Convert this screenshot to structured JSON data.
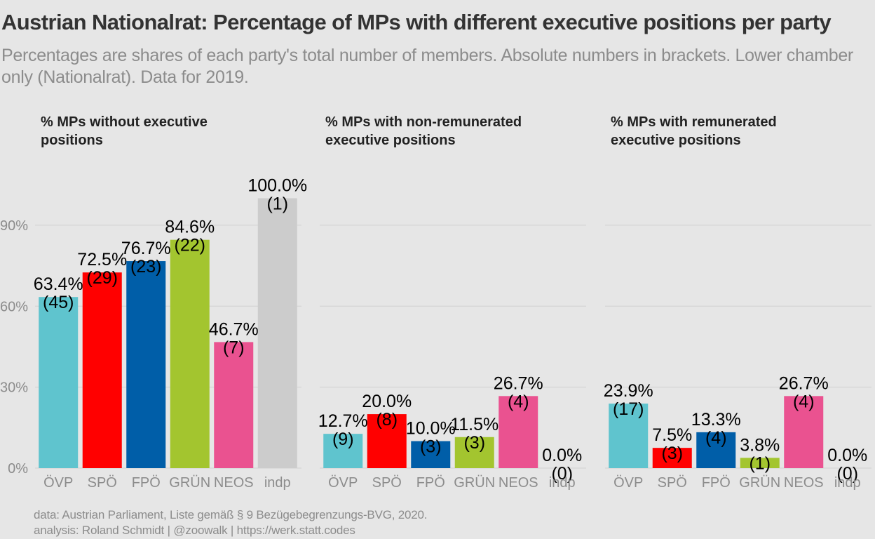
{
  "title": "Austrian Nationalrat: Percentage of MPs with different executive positions per party",
  "subtitle": "Percentages are shares of each party's total number of members. Absolute numbers in brackets. Lower chamber only (Nationalrat). Data for 2019.",
  "caption": {
    "line1": "data: Austrian Parliament, Liste gemäß § 9 Bezügebegrenzungs-BVG, 2020.",
    "line2": "analysis: Roland Schmidt | @zoowalk | https://werk.statt.codes"
  },
  "chart_data": {
    "type": "bar",
    "categories": [
      "ÖVP",
      "SPÖ",
      "FPÖ",
      "GRÜN",
      "NEOS",
      "indp"
    ],
    "colors": [
      "#5fc4ce",
      "#ff0000",
      "#005ea8",
      "#a3c52f",
      "#ea5290",
      "#cccccc"
    ],
    "ylim": [
      0,
      110
    ],
    "yticks": [
      0,
      30,
      60,
      90
    ],
    "ytick_labels": [
      "0%",
      "30%",
      "60%",
      "90%"
    ],
    "grid": true,
    "panels": [
      {
        "title": [
          "% MPs without executive",
          "positions"
        ],
        "values": [
          63.4,
          72.5,
          76.7,
          84.6,
          46.7,
          100.0
        ],
        "value_labels": [
          "63.4%",
          "72.5%",
          "76.7%",
          "84.6%",
          "46.7%",
          "100.0%"
        ],
        "count_labels": [
          "(45)",
          "(29)",
          "(23)",
          "(22)",
          "(7)",
          "(1)"
        ]
      },
      {
        "title": [
          "% MPs with non-remunerated",
          "executive positions"
        ],
        "values": [
          12.7,
          20.0,
          10.0,
          11.5,
          26.7,
          0.0
        ],
        "value_labels": [
          "12.7%",
          "20.0%",
          "10.0%",
          "11.5%",
          "26.7%",
          "0.0%"
        ],
        "count_labels": [
          "(9)",
          "(8)",
          "(3)",
          "(3)",
          "(4)",
          "(0)"
        ]
      },
      {
        "title": [
          "% MPs with remunerated",
          "executive positions"
        ],
        "values": [
          23.9,
          7.5,
          13.3,
          3.8,
          26.7,
          0.0
        ],
        "value_labels": [
          "23.9%",
          "7.5%",
          "13.3%",
          "3.8%",
          "26.7%",
          "0.0%"
        ],
        "count_labels": [
          "(17)",
          "(3)",
          "(4)",
          "(1)",
          "(4)",
          "(0)"
        ]
      }
    ]
  }
}
